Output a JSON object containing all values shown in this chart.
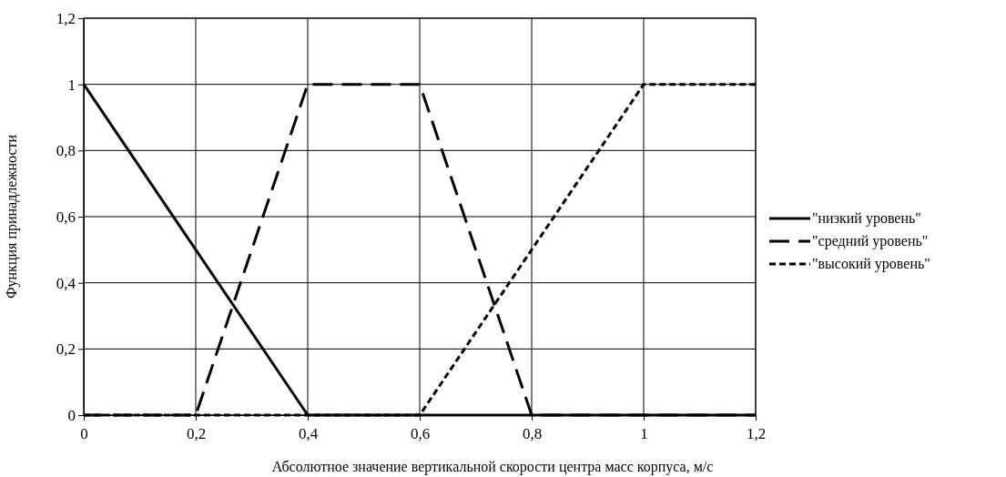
{
  "chart_data": {
    "type": "line",
    "xlabel": "Абсолютное значение вертикальной скорости центра масс корпуса, м/с",
    "ylabel": "Функция принадлежности",
    "xlim": [
      0,
      1.2
    ],
    "ylim": [
      0,
      1.2
    ],
    "xticks": [
      0,
      {
        "value": 0.2,
        "label": "0,2"
      },
      {
        "value": 0.4,
        "label": "0,4"
      },
      {
        "value": 0.6,
        "label": "0,6"
      },
      {
        "value": 0.8,
        "label": "0,8"
      },
      1,
      {
        "value": 1.2,
        "label": "1,2"
      }
    ],
    "yticks": [
      0,
      {
        "value": 0.2,
        "label": "0,2"
      },
      {
        "value": 0.4,
        "label": "0,4"
      },
      {
        "value": 0.6,
        "label": "0,6"
      },
      {
        "value": 0.8,
        "label": "0,8"
      },
      1,
      {
        "value": 1.2,
        "label": "1,2"
      }
    ],
    "grid": true,
    "legend": "right",
    "marker": "none",
    "series": [
      {
        "name": "\"низкий уровень\"",
        "color": "#000000",
        "line_style": "solid",
        "x": [
          0,
          0.4,
          1.2
        ],
        "values": [
          1,
          0,
          0
        ]
      },
      {
        "name": "\"средний уровень\"",
        "color": "#000000",
        "line_style": "dashed",
        "x": [
          0,
          0.2,
          0.4,
          0.6,
          0.8,
          1.2
        ],
        "values": [
          0,
          0,
          1,
          1,
          0,
          0
        ]
      },
      {
        "name": "\"высокий уровень\"",
        "color": "#000000",
        "line_style": "dotted",
        "x": [
          0,
          0.6,
          1,
          1.2
        ],
        "values": [
          0,
          0,
          1,
          1
        ]
      }
    ]
  }
}
